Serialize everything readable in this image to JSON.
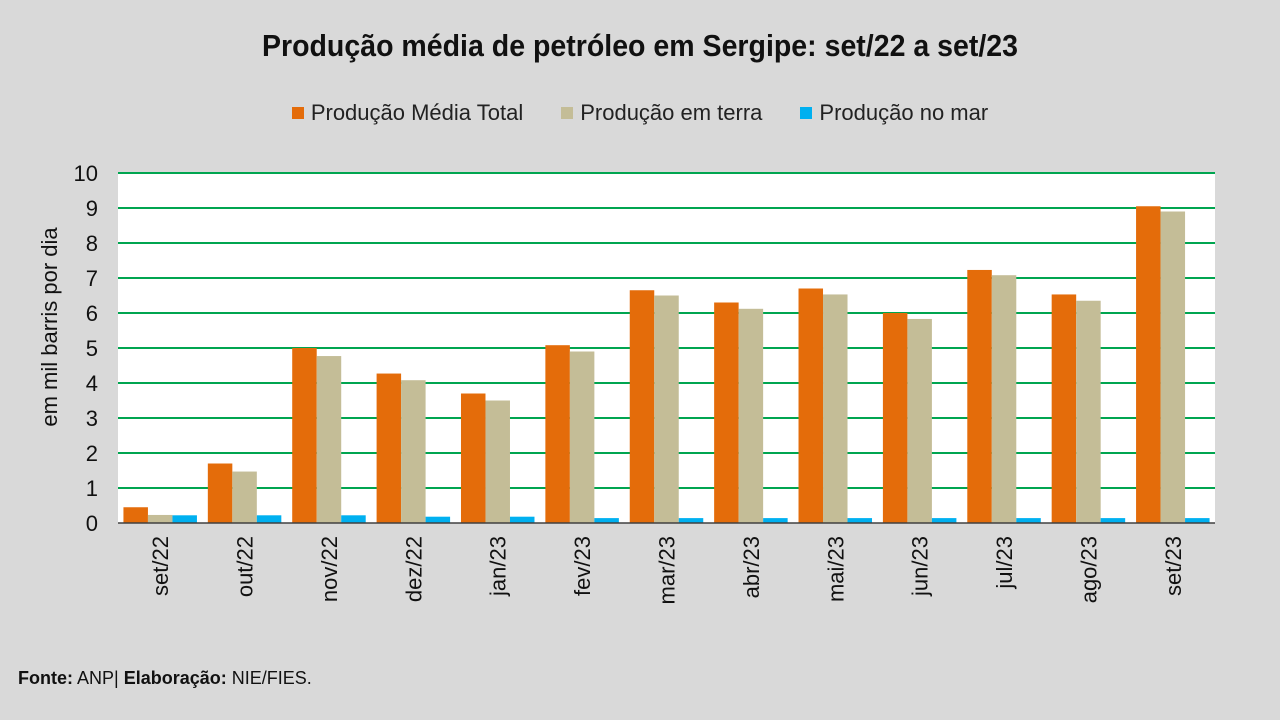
{
  "chart_data": {
    "type": "bar",
    "title": "Produção média de petróleo em Sergipe: set/22 a set/23",
    "ylabel": "em mil barris por dia",
    "xlabel": "",
    "ylim": [
      0,
      10
    ],
    "yticks": [
      0,
      1,
      2,
      3,
      4,
      5,
      6,
      7,
      8,
      9,
      10
    ],
    "grid": true,
    "legend_position": "top-center",
    "categories": [
      "set/22",
      "out/22",
      "nov/22",
      "dez/22",
      "jan/23",
      "fev/23",
      "mar/23",
      "abr/23",
      "mai/23",
      "jun/23",
      "jul/23",
      "ago/23",
      "set/23"
    ],
    "series": [
      {
        "name": "Produção Média Total",
        "color": "#e46c0a",
        "values": [
          0.45,
          1.7,
          5.0,
          4.27,
          3.7,
          5.08,
          6.65,
          6.3,
          6.7,
          6.0,
          7.23,
          6.53,
          9.05
        ]
      },
      {
        "name": "Produção em terra",
        "color": "#c4bd97",
        "values": [
          0.23,
          1.47,
          4.77,
          4.08,
          3.5,
          4.9,
          6.5,
          6.12,
          6.53,
          5.83,
          7.08,
          6.35,
          8.9
        ]
      },
      {
        "name": "Produção no mar",
        "color": "#00b0f0",
        "values": [
          0.22,
          0.22,
          0.22,
          0.18,
          0.18,
          0.14,
          0.14,
          0.14,
          0.14,
          0.14,
          0.14,
          0.14,
          0.14
        ]
      }
    ]
  },
  "footer": {
    "fonte_label": "Fonte:",
    "fonte_value": "ANP|",
    "elaboracao_label": "Elaboração:",
    "elaboracao_value": "NIE/FIES."
  },
  "colors": {
    "background": "#d9d9d9",
    "plot_background": "#ffffff",
    "gridline": "#00a550"
  }
}
